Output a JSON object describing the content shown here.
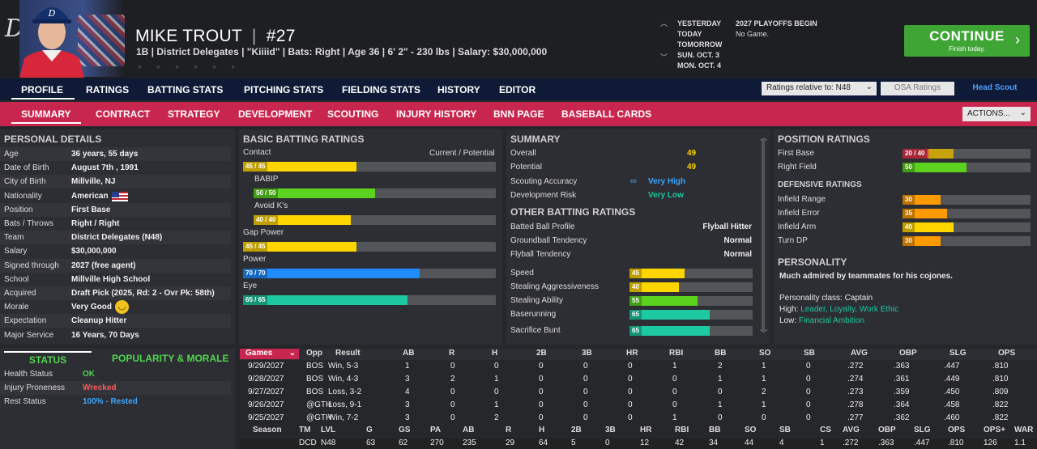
{
  "header": {
    "team_logo": "D",
    "player_name": "MIKE TROUT",
    "name_separator": "|",
    "player_number": "#27",
    "player_info": "1B | District Delegates | \"Kiiiid\" | Bats: Right | Age 36 | 6' 2\" - 230 lbs | Salary: $30,000,000",
    "calendar": {
      "days": [
        "YESTERDAY",
        "TODAY",
        "TOMORROW",
        "SUN. OCT. 3",
        "MON. OCT. 4"
      ],
      "events": [
        "2027 PLAYOFFS BEGIN",
        "No Game."
      ]
    },
    "continue_label": "CONTINUE",
    "continue_sub": "Finish today.",
    "continue_arrow": "›"
  },
  "nav_main": {
    "items": [
      "PROFILE",
      "RATINGS",
      "BATTING STATS",
      "PITCHING STATS",
      "FIELDING STATS",
      "HISTORY",
      "EDITOR"
    ],
    "ratings_relative": "Ratings relative to: N48",
    "osa_ratings": "OSA Ratings",
    "head_scout": "Head Scout"
  },
  "nav_sub": {
    "items": [
      "SUMMARY",
      "CONTRACT",
      "STRATEGY",
      "DEVELOPMENT",
      "SCOUTING",
      "INJURY HISTORY",
      "BNN PAGE",
      "BASEBALL CARDS"
    ],
    "actions": "ACTIONS..."
  },
  "personal": {
    "title": "PERSONAL DETAILS",
    "rows": [
      {
        "label": "Age",
        "value": "36 years, 55 days"
      },
      {
        "label": "Date of Birth",
        "value": "August 7th , 1991"
      },
      {
        "label": "City of Birth",
        "value": "Millville, NJ"
      },
      {
        "label": "Nationality",
        "value": "American"
      },
      {
        "label": "Position",
        "value": "First Base"
      },
      {
        "label": "Bats / Throws",
        "value": "Right / Right"
      },
      {
        "label": "Team",
        "value": "District Delegates (N48)"
      },
      {
        "label": "Salary",
        "value": "$30,000,000"
      },
      {
        "label": "Signed through",
        "value": "2027 (free agent)"
      },
      {
        "label": "School",
        "value": "Millville High School"
      },
      {
        "label": "Acquired",
        "value": "Draft Pick (2025, Rd: 2 - Ovr Pk: 58th)"
      },
      {
        "label": "Morale",
        "value": "Very Good"
      },
      {
        "label": "Expectation",
        "value": "Cleanup Hitter"
      },
      {
        "label": "Major Service",
        "value": "16 Years, 70 Days"
      }
    ]
  },
  "status": {
    "tab_status": "STATUS",
    "tab_popularity": "POPULARITY & MORALE",
    "rows": [
      {
        "label": "Health Status",
        "value": "OK",
        "color": "#4fd64f"
      },
      {
        "label": "Injury Proneness",
        "value": "Wrecked",
        "color": "#ff5a5a"
      },
      {
        "label": "Rest Status",
        "value": "100% - Rested",
        "color": "#3aa6ff"
      }
    ]
  },
  "batting": {
    "title": "BASIC BATTING RATINGS",
    "header_right": "Current / Potential",
    "ratings": [
      {
        "label": "Contact",
        "badge": "45 / 45",
        "value": 45,
        "color": "ylw"
      },
      {
        "label": "BABIP",
        "badge": "50 / 50",
        "value": 50,
        "color": "grn"
      },
      {
        "label": "Avoid K's",
        "badge": "40 / 40",
        "value": 40,
        "color": "ylw"
      },
      {
        "label": "Gap Power",
        "badge": "45 / 45",
        "value": 45,
        "color": "ylw"
      },
      {
        "label": "Power",
        "badge": "70 / 70",
        "value": 70,
        "color": "blu"
      },
      {
        "label": "Eye",
        "badge": "65 / 65",
        "value": 65,
        "color": "tea"
      }
    ]
  },
  "summary": {
    "title": "SUMMARY",
    "rows": [
      {
        "label": "Overall",
        "value": "49",
        "color": "#ffd500"
      },
      {
        "label": "Potential",
        "value": "49",
        "color": "#ffd500"
      },
      {
        "label": "Scouting Accuracy",
        "value": "Very High",
        "color": "#3aa6ff"
      },
      {
        "label": "Development Risk",
        "value": "Very Low",
        "color": "#1cc9a0"
      }
    ],
    "other_title": "OTHER BATTING RATINGS",
    "other": [
      {
        "label": "Batted Ball Profile",
        "value": "Flyball Hitter"
      },
      {
        "label": "Groundball Tendency",
        "value": "Normal"
      },
      {
        "label": "Flyball Tendency",
        "value": "Normal"
      }
    ],
    "run_ratings": [
      {
        "label": "Speed",
        "badge": "45",
        "value": 45,
        "color": "ylw"
      },
      {
        "label": "Stealing Aggressiveness",
        "badge": "40",
        "value": 40,
        "color": "ylw"
      },
      {
        "label": "Stealing Ability",
        "badge": "55",
        "value": 55,
        "color": "grn"
      },
      {
        "label": "Baserunning",
        "badge": "65",
        "value": 65,
        "color": "tea"
      },
      {
        "label": "Sacrifice Bunt",
        "badge": "65",
        "value": 65,
        "color": "tea"
      }
    ]
  },
  "position": {
    "title": "POSITION RATINGS",
    "rows": [
      {
        "label": "First Base",
        "badge": "20 / 40",
        "value": 20,
        "potential": 40,
        "color": "red"
      },
      {
        "label": "Right Field",
        "badge": "50",
        "value": 50,
        "color": "grn"
      }
    ],
    "def_title": "DEFENSIVE RATINGS",
    "def": [
      {
        "label": "Infield Range",
        "badge": "30",
        "value": 30,
        "color": "org"
      },
      {
        "label": "Infield Error",
        "badge": "35",
        "value": 35,
        "color": "org"
      },
      {
        "label": "Infield Arm",
        "badge": "40",
        "value": 40,
        "color": "ylw"
      },
      {
        "label": "Turn DP",
        "badge": "30",
        "value": 30,
        "color": "org"
      }
    ],
    "personality_title": "PERSONALITY",
    "personality_text": "Much admired by teammates for his cojones.",
    "class_label": "Personality class: Captain",
    "high_label": "High:",
    "high_value": "Leader, Loyalty, Work Ethic",
    "low_label": "Low:",
    "low_value": "Financial Ambition"
  },
  "games": {
    "select": "Games",
    "headers": [
      "Opp",
      "Result",
      "AB",
      "R",
      "H",
      "2B",
      "3B",
      "HR",
      "RBI",
      "BB",
      "SO",
      "SB",
      "AVG",
      "OBP",
      "SLG",
      "OPS"
    ],
    "rows": [
      [
        "9/29/2027",
        "BOS",
        "Win, 5-3",
        "1",
        "0",
        "0",
        "0",
        "0",
        "0",
        "1",
        "2",
        "1",
        "0",
        ".272",
        ".363",
        ".447",
        ".810"
      ],
      [
        "9/28/2027",
        "BOS",
        "Win, 4-3",
        "3",
        "2",
        "1",
        "0",
        "0",
        "0",
        "0",
        "1",
        "1",
        "0",
        ".274",
        ".361",
        ".449",
        ".810"
      ],
      [
        "9/27/2027",
        "BOS",
        "Loss, 3-2",
        "4",
        "0",
        "0",
        "0",
        "0",
        "0",
        "0",
        "0",
        "2",
        "0",
        ".273",
        ".359",
        ".450",
        ".809"
      ],
      [
        "9/26/2027",
        "@GTH",
        "Loss, 9-1",
        "3",
        "0",
        "1",
        "0",
        "0",
        "0",
        "0",
        "1",
        "1",
        "0",
        ".278",
        ".364",
        ".458",
        ".822"
      ],
      [
        "9/25/2027",
        "@GTH",
        "Win, 7-2",
        "3",
        "0",
        "2",
        "0",
        "0",
        "0",
        "1",
        "0",
        "0",
        "0",
        ".277",
        ".362",
        ".460",
        ".822"
      ]
    ]
  },
  "season": {
    "headers": [
      "Season",
      "TM",
      "LVL",
      "G",
      "GS",
      "PA",
      "AB",
      "R",
      "H",
      "2B",
      "3B",
      "HR",
      "RBI",
      "BB",
      "SO",
      "SB",
      "CS",
      "AVG",
      "OBP",
      "SLG",
      "OPS",
      "OPS+",
      "WAR"
    ],
    "row": [
      "",
      "DCD",
      "N48",
      "63",
      "62",
      "270",
      "235",
      "29",
      "64",
      "5",
      "0",
      "12",
      "42",
      "34",
      "44",
      "4",
      "1",
      ".272",
      ".363",
      ".447",
      ".810",
      "126",
      "1.1"
    ]
  }
}
